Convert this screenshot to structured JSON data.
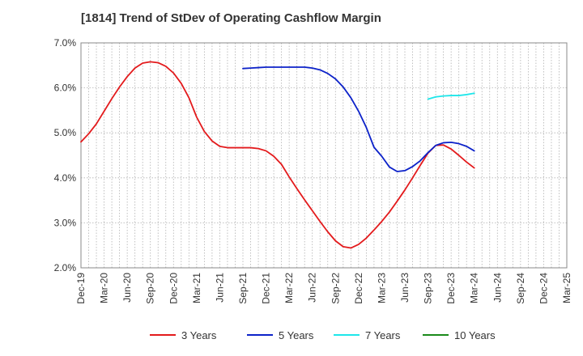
{
  "chart_data": {
    "type": "line",
    "title": "[1814]  Trend of StDev of Operating Cashflow Margin",
    "xlabel": "",
    "ylabel": "",
    "x_ticks": [
      "Dec-19",
      "Mar-20",
      "Jun-20",
      "Sep-20",
      "Dec-20",
      "Mar-21",
      "Jun-21",
      "Sep-21",
      "Dec-21",
      "Mar-22",
      "Jun-22",
      "Sep-22",
      "Dec-22",
      "Mar-23",
      "Jun-23",
      "Sep-23",
      "Dec-23",
      "Mar-24",
      "Jun-24",
      "Sep-24",
      "Dec-24",
      "Mar-25"
    ],
    "y_ticks": [
      "2.0%",
      "3.0%",
      "4.0%",
      "5.0%",
      "6.0%",
      "7.0%"
    ],
    "ylim": [
      2.0,
      7.0
    ],
    "grid": true,
    "legend_position": "bottom",
    "series": [
      {
        "name": "3 Years",
        "color": "#e31a1c",
        "x": [
          "Dec-19",
          "Jan-20",
          "Feb-20",
          "Mar-20",
          "Apr-20",
          "May-20",
          "Jun-20",
          "Jul-20",
          "Aug-20",
          "Sep-20",
          "Oct-20",
          "Nov-20",
          "Dec-20",
          "Jan-21",
          "Feb-21",
          "Mar-21",
          "Apr-21",
          "May-21",
          "Jun-21",
          "Jul-21",
          "Aug-21",
          "Sep-21",
          "Oct-21",
          "Nov-21",
          "Dec-21",
          "Jan-22",
          "Feb-22",
          "Mar-22",
          "Apr-22",
          "May-22",
          "Jun-22",
          "Jul-22",
          "Aug-22",
          "Sep-22",
          "Oct-22",
          "Nov-22",
          "Dec-22",
          "Jan-23",
          "Feb-23",
          "Mar-23",
          "Apr-23",
          "May-23",
          "Jun-23",
          "Jul-23",
          "Aug-23",
          "Sep-23",
          "Oct-23",
          "Nov-23",
          "Dec-23",
          "Jan-24",
          "Feb-24",
          "Mar-24"
        ],
        "values": [
          4.8,
          4.98,
          5.2,
          5.48,
          5.76,
          6.02,
          6.25,
          6.44,
          6.55,
          6.58,
          6.56,
          6.48,
          6.33,
          6.1,
          5.78,
          5.35,
          5.03,
          4.82,
          4.7,
          4.67,
          4.67,
          4.67,
          4.67,
          4.65,
          4.6,
          4.48,
          4.3,
          4.02,
          3.76,
          3.51,
          3.27,
          3.03,
          2.8,
          2.6,
          2.47,
          2.44,
          2.52,
          2.66,
          2.84,
          3.03,
          3.24,
          3.48,
          3.73,
          4.0,
          4.28,
          4.55,
          4.72,
          4.73,
          4.64,
          4.5,
          4.35,
          4.22
        ]
      },
      {
        "name": "5 Years",
        "color": "#0c22c9",
        "x": [
          "Sep-21",
          "Oct-21",
          "Nov-21",
          "Dec-21",
          "Jan-22",
          "Feb-22",
          "Mar-22",
          "Apr-22",
          "May-22",
          "Jun-22",
          "Jul-22",
          "Aug-22",
          "Sep-22",
          "Oct-22",
          "Nov-22",
          "Dec-22",
          "Jan-23",
          "Feb-23",
          "Mar-23",
          "Apr-23",
          "May-23",
          "Jun-23",
          "Jul-23",
          "Aug-23",
          "Sep-23",
          "Oct-23",
          "Nov-23",
          "Dec-23",
          "Jan-24",
          "Feb-24",
          "Mar-24"
        ],
        "values": [
          6.43,
          6.44,
          6.45,
          6.46,
          6.46,
          6.46,
          6.46,
          6.46,
          6.46,
          6.44,
          6.4,
          6.32,
          6.2,
          6.02,
          5.78,
          5.48,
          5.12,
          4.68,
          4.48,
          4.24,
          4.14,
          4.16,
          4.25,
          4.38,
          4.56,
          4.72,
          4.78,
          4.79,
          4.76,
          4.7,
          4.6
        ]
      },
      {
        "name": "7 Years",
        "color": "#1ee6ea",
        "x": [
          "Sep-23",
          "Oct-23",
          "Nov-23",
          "Dec-23",
          "Jan-24",
          "Feb-24",
          "Mar-24"
        ],
        "values": [
          5.75,
          5.8,
          5.82,
          5.83,
          5.83,
          5.85,
          5.88
        ]
      },
      {
        "name": "10 Years",
        "color": "#1a8a1a",
        "x": [],
        "values": []
      }
    ]
  }
}
